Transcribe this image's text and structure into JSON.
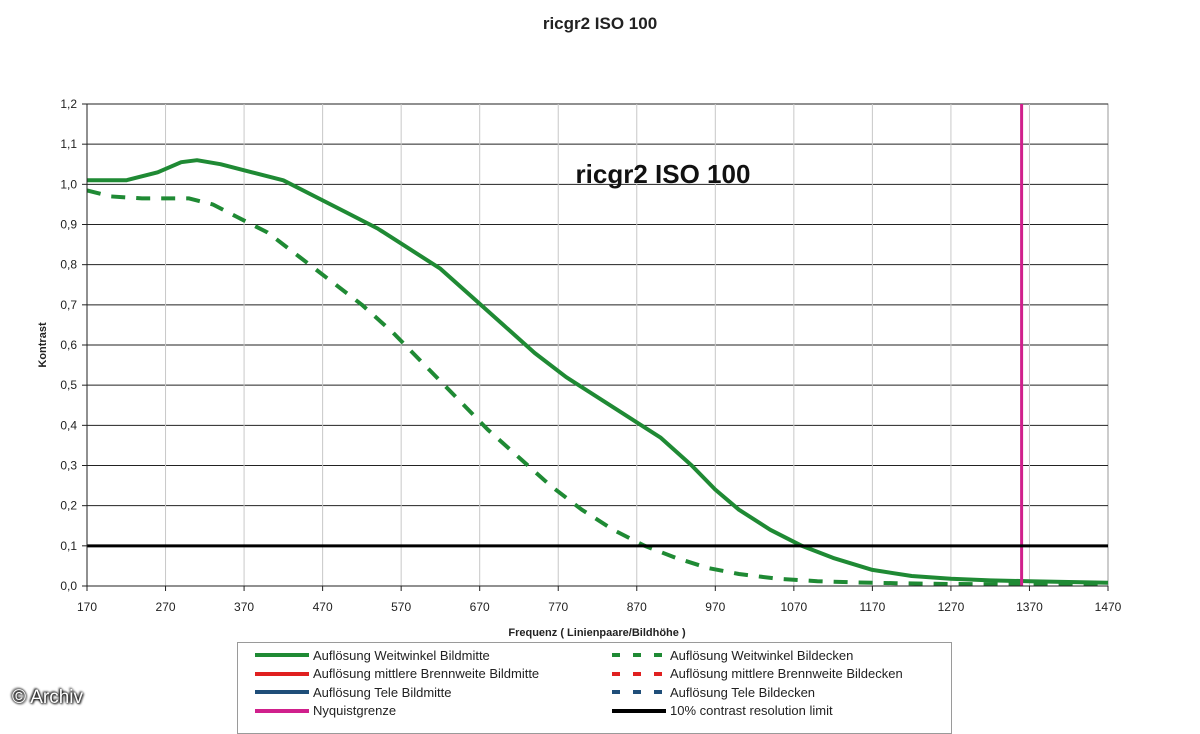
{
  "page": {
    "title": "ricgr2 ISO 100",
    "watermark": "© Archiv"
  },
  "chart_data": {
    "type": "line",
    "title": "ricgr2 ISO 100",
    "inner_title": "ricgr2 ISO 100",
    "xlabel": "Frequenz ( Linienpaare/Bildhöhe )",
    "ylabel": "Kontrast",
    "xlim": [
      170,
      1470
    ],
    "ylim": [
      0,
      1.2
    ],
    "x_ticks": [
      "170",
      "270",
      "370",
      "470",
      "570",
      "670",
      "770",
      "870",
      "970",
      "1070",
      "1170",
      "1270",
      "1370",
      "1470"
    ],
    "y_ticks": [
      "0,0",
      "0,1",
      "0,2",
      "0,3",
      "0,4",
      "0,5",
      "0,6",
      "0,7",
      "0,8",
      "0,9",
      "1,0",
      "1,1",
      "1,2"
    ],
    "grid": "horizontal",
    "legend_position": "bottom",
    "series": [
      {
        "name": "Auflösung Weitwinkel Bildmitte",
        "color": "#1f8a34",
        "style": "solid",
        "x": [
          170,
          220,
          260,
          290,
          310,
          340,
          380,
          420,
          460,
          500,
          540,
          580,
          620,
          660,
          700,
          740,
          780,
          820,
          860,
          900,
          940,
          970,
          1000,
          1040,
          1080,
          1120,
          1170,
          1220,
          1270,
          1320,
          1370,
          1420,
          1470
        ],
        "y": [
          1.01,
          1.01,
          1.03,
          1.055,
          1.06,
          1.05,
          1.03,
          1.01,
          0.97,
          0.93,
          0.89,
          0.84,
          0.79,
          0.72,
          0.65,
          0.58,
          0.52,
          0.47,
          0.42,
          0.37,
          0.3,
          0.24,
          0.19,
          0.14,
          0.1,
          0.07,
          0.04,
          0.025,
          0.018,
          0.014,
          0.012,
          0.01,
          0.008
        ]
      },
      {
        "name": "Auflösung Weitwinkel Bildecken",
        "color": "#1f8a34",
        "style": "dashed",
        "x": [
          170,
          200,
          240,
          270,
          300,
          330,
          360,
          400,
          440,
          480,
          520,
          560,
          600,
          640,
          680,
          720,
          760,
          800,
          840,
          880,
          920,
          960,
          1000,
          1050,
          1100,
          1150,
          1200,
          1270,
          1370,
          1470
        ],
        "y": [
          0.985,
          0.97,
          0.965,
          0.965,
          0.965,
          0.95,
          0.92,
          0.88,
          0.82,
          0.76,
          0.7,
          0.63,
          0.55,
          0.47,
          0.39,
          0.32,
          0.25,
          0.19,
          0.14,
          0.1,
          0.07,
          0.045,
          0.03,
          0.018,
          0.012,
          0.009,
          0.007,
          0.005,
          0.004,
          0.004
        ]
      },
      {
        "name": "Auflösung mittlere Brennweite Bildmitte",
        "color": "#e02020",
        "style": "solid",
        "x": [],
        "y": []
      },
      {
        "name": "Auflösung mittlere Brennweite Bildecken",
        "color": "#e02020",
        "style": "dashed",
        "x": [],
        "y": []
      },
      {
        "name": "Auflösung Tele Bildmitte",
        "color": "#1f4e79",
        "style": "solid",
        "x": [],
        "y": []
      },
      {
        "name": "Auflösung Tele Bildecken",
        "color": "#1f4e79",
        "style": "dashed",
        "x": [],
        "y": []
      },
      {
        "name": "Nyquistgrenze",
        "color": "#d0208c",
        "style": "solid",
        "vertical_x": 1360
      },
      {
        "name": "10% contrast resolution limit",
        "color": "#000000",
        "style": "solid",
        "horizontal_y": 0.1
      }
    ]
  },
  "legend": {
    "items": [
      {
        "label": "Auflösung Weitwinkel Bildmitte",
        "color": "#1f8a34",
        "style": "solid"
      },
      {
        "label": "Auflösung Weitwinkel Bildecken",
        "color": "#1f8a34",
        "style": "dashed"
      },
      {
        "label": "Auflösung mittlere Brennweite Bildmitte",
        "color": "#e02020",
        "style": "solid"
      },
      {
        "label": "Auflösung mittlere Brennweite Bildecken",
        "color": "#e02020",
        "style": "dashed"
      },
      {
        "label": "Auflösung Tele Bildmitte",
        "color": "#1f4e79",
        "style": "solid"
      },
      {
        "label": "Auflösung Tele Bildecken",
        "color": "#1f4e79",
        "style": "dashed"
      },
      {
        "label": "Nyquistgrenze",
        "color": "#d0208c",
        "style": "solid"
      },
      {
        "label": "10% contrast resolution limit",
        "color": "#000000",
        "style": "solid"
      }
    ]
  }
}
